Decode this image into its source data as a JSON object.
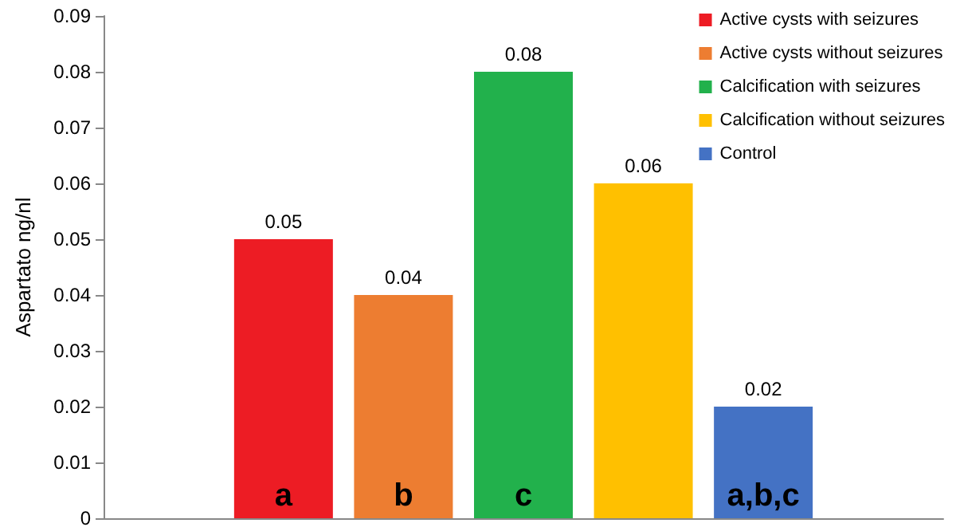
{
  "chart_data": {
    "type": "bar",
    "ylabel": "Aspartato ng/nl",
    "categories": [
      null,
      "a",
      "b",
      "c",
      null,
      "a,b,c",
      null
    ],
    "series": [
      {
        "name": "Active cysts with seizures",
        "color": "#ed1c24",
        "values": [
          null,
          0.05,
          null,
          null,
          null,
          null,
          null
        ]
      },
      {
        "name": "Active cysts without seizures",
        "color": "#ed7d31",
        "values": [
          null,
          null,
          0.04,
          null,
          null,
          null,
          null
        ]
      },
      {
        "name": "Calcification with seizures",
        "color": "#22b14c",
        "values": [
          null,
          null,
          null,
          0.08,
          null,
          null,
          null
        ]
      },
      {
        "name": "Calcification without seizures",
        "color": "#ffc000",
        "values": [
          null,
          null,
          null,
          null,
          0.06,
          null,
          null
        ]
      },
      {
        "name": "Control",
        "color": "#4472c4",
        "values": [
          null,
          null,
          null,
          null,
          null,
          0.02,
          null
        ]
      }
    ],
    "ylim": [
      0,
      0.09
    ],
    "yticks": [
      0,
      0.01,
      0.02,
      0.03,
      0.04,
      0.05,
      0.06,
      0.07,
      0.08,
      0.09
    ],
    "data_labels": true,
    "legend": "top right",
    "grid": false
  }
}
